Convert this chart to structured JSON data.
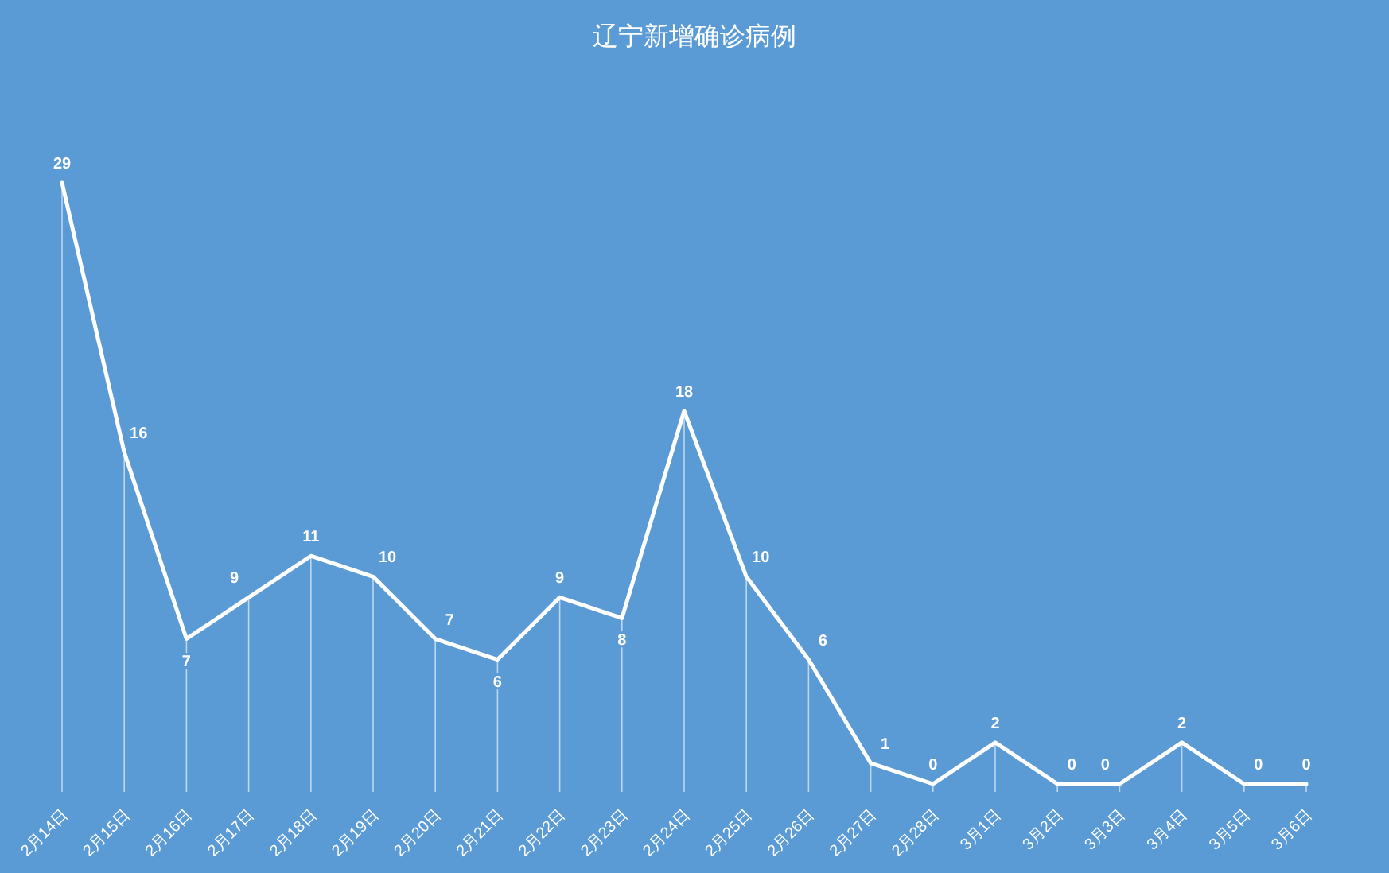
{
  "chart_data": {
    "type": "line",
    "title": "辽宁新增确诊病例",
    "categories": [
      "2月14日",
      "2月15日",
      "2月16日",
      "2月17日",
      "2月18日",
      "2月19日",
      "2月20日",
      "2月21日",
      "2月22日",
      "2月23日",
      "2月24日",
      "2月25日",
      "2月26日",
      "2月27日",
      "2月28日",
      "3月1日",
      "3月2日",
      "3月3日",
      "3月4日",
      "3月5日",
      "3月6日"
    ],
    "series": [
      {
        "color": "#ffffff",
        "values": [
          29,
          16,
          7,
          9,
          11,
          10,
          7,
          6,
          9,
          8,
          18,
          10,
          6,
          1,
          0,
          2,
          0,
          0,
          2,
          0,
          0
        ]
      }
    ],
    "data_labels": true,
    "marker": "none",
    "line_style": "solid",
    "grid": "x"
  }
}
